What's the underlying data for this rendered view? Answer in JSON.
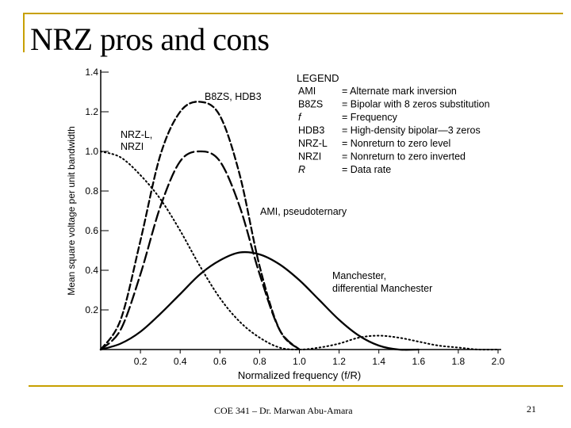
{
  "slide": {
    "title": "NRZ pros and cons",
    "footer": "COE 341 – Dr. Marwan Abu-Amara",
    "page_number": "21",
    "accent_color": "#c7a000"
  },
  "chart_data": {
    "type": "line",
    "xlabel": "Normalized frequency (f/R)",
    "ylabel": "Mean square voltage per unit bandwidth",
    "xlim": [
      0,
      2.0
    ],
    "ylim": [
      0,
      1.4
    ],
    "x_ticks": [
      "0.2",
      "0.4",
      "0.6",
      "0.8",
      "1.0",
      "1.2",
      "1.4",
      "1.6",
      "1.8",
      "2.0"
    ],
    "y_ticks": [
      "0.2",
      "0.4",
      "0.6",
      "0.8",
      "1.0",
      "1.2",
      "1.4"
    ],
    "legend": {
      "title": "LEGEND",
      "entries": [
        {
          "abbr": "AMI",
          "desc": "= Alternate mark inversion"
        },
        {
          "abbr": "B8ZS",
          "desc": "= Bipolar with 8 zeros substitution"
        },
        {
          "abbr": "f",
          "desc": "= Frequency"
        },
        {
          "abbr": "HDB3",
          "desc": "= High-density bipolar—3 zeros"
        },
        {
          "abbr": "NRZ-L",
          "desc": "= Nonreturn to zero level"
        },
        {
          "abbr": "NRZI",
          "desc": "= Nonreturn to zero inverted"
        },
        {
          "abbr": "R",
          "desc": "= Data rate"
        }
      ]
    },
    "series": [
      {
        "labels": [
          "NRZ-L,",
          "NRZI"
        ],
        "style": "dotted",
        "x": [
          0,
          0.1,
          0.2,
          0.3,
          0.4,
          0.5,
          0.6,
          0.7,
          0.8,
          0.9,
          1.0,
          1.1,
          1.2,
          1.3,
          1.4,
          1.5,
          1.6,
          1.7,
          1.8,
          1.9,
          2.0
        ],
        "y": [
          1.0,
          0.97,
          0.88,
          0.76,
          0.6,
          0.42,
          0.26,
          0.14,
          0.06,
          0.01,
          0.0,
          0.01,
          0.03,
          0.06,
          0.07,
          0.06,
          0.04,
          0.02,
          0.01,
          0.0,
          0.0
        ]
      },
      {
        "labels": [
          "B8ZS, HDB3"
        ],
        "style": "dashed",
        "x": [
          0,
          0.1,
          0.2,
          0.3,
          0.4,
          0.5,
          0.6,
          0.7,
          0.8,
          0.9,
          1.0
        ],
        "y": [
          0.0,
          0.15,
          0.55,
          0.98,
          1.2,
          1.25,
          1.18,
          0.88,
          0.42,
          0.1,
          0.0
        ]
      },
      {
        "labels": [
          "AMI, pseudoternary"
        ],
        "style": "long-dash",
        "x": [
          0,
          0.1,
          0.2,
          0.3,
          0.4,
          0.5,
          0.6,
          0.7,
          0.8,
          0.9,
          1.0
        ],
        "y": [
          0.0,
          0.1,
          0.38,
          0.72,
          0.95,
          1.0,
          0.95,
          0.72,
          0.38,
          0.1,
          0.0
        ]
      },
      {
        "labels": [
          "Manchester,",
          "differential Manchester"
        ],
        "style": "solid",
        "x": [
          0,
          0.1,
          0.2,
          0.3,
          0.4,
          0.5,
          0.6,
          0.7,
          0.8,
          0.9,
          1.0,
          1.1,
          1.2,
          1.3,
          1.4,
          1.5,
          1.6
        ],
        "y": [
          0.0,
          0.03,
          0.09,
          0.18,
          0.28,
          0.38,
          0.45,
          0.49,
          0.48,
          0.43,
          0.35,
          0.25,
          0.15,
          0.07,
          0.02,
          0.0,
          0.0
        ]
      }
    ]
  }
}
